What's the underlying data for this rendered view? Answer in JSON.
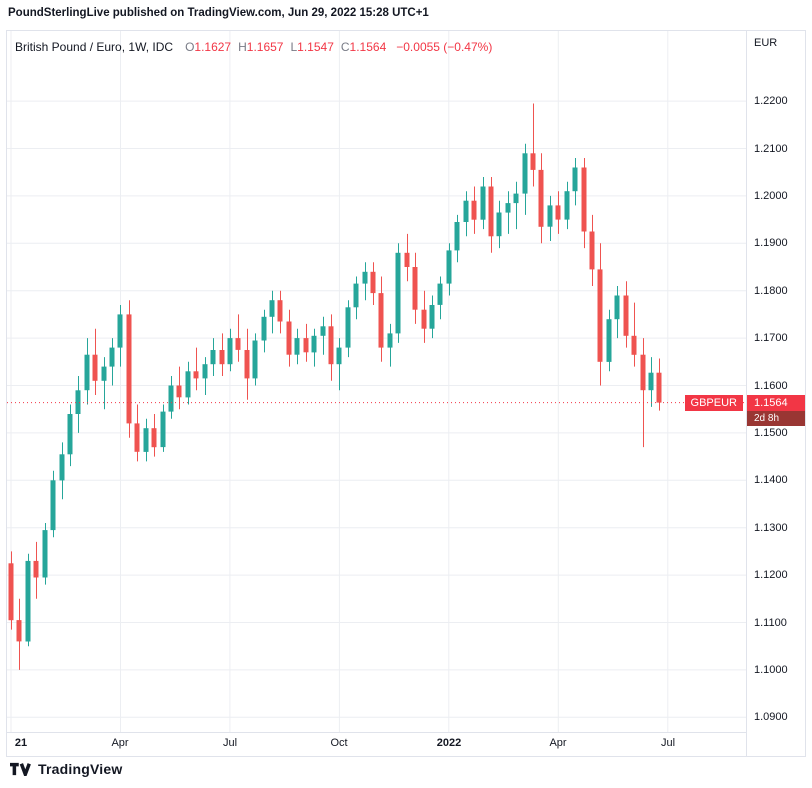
{
  "attribution": "PoundSterlingLive published on TradingView.com, Jun 29, 2022 15:28 UTC+1",
  "legend": {
    "symbol": "British Pound / Euro, 1W, IDC",
    "open_label": "O",
    "open": "1.1627",
    "high_label": "H",
    "high": "1.1657",
    "low_label": "L",
    "low": "1.1547",
    "close_label": "C",
    "close": "1.1564",
    "change": "−0.0055 (−0.47%)"
  },
  "price_axis": {
    "currency": "EUR"
  },
  "price_line": {
    "symbol": "GBPEUR",
    "price": "1.1564",
    "value": 1.1564,
    "countdown": "2d 8h"
  },
  "footer": {
    "brand": "TradingView"
  },
  "colors": {
    "up": "#26a69a",
    "down": "#ef5350",
    "down_text": "#f23645",
    "grid": "#eceef2",
    "border": "#e0e3eb",
    "axis_text": "#131722",
    "price_badge": "#f23645",
    "countdown_badge": "#993633",
    "dotted_line": "#f23645"
  },
  "chart_data": {
    "type": "candlestick",
    "title": "British Pound / Euro",
    "symbol": "GBPEUR",
    "timeframe": "1W",
    "exchange": "IDC",
    "ylabel": "EUR",
    "ylim": [
      1.0869,
      1.2348
    ],
    "grid": true,
    "yticks": [
      "1.2200",
      "1.2100",
      "1.2000",
      "1.1900",
      "1.1800",
      "1.1700",
      "1.1600",
      "1.1500",
      "1.1400",
      "1.1300",
      "1.1200",
      "1.1100",
      "1.1000",
      "1.0900"
    ],
    "x_labels": [
      {
        "index": 0,
        "label": "21",
        "bold": true
      },
      {
        "index": 13,
        "label": "Apr",
        "bold": false
      },
      {
        "index": 26,
        "label": "Jul",
        "bold": false
      },
      {
        "index": 39,
        "label": "Oct",
        "bold": false
      },
      {
        "index": 52,
        "label": "2022",
        "bold": true
      },
      {
        "index": 65,
        "label": "Apr",
        "bold": false
      },
      {
        "index": 78,
        "label": "Jul",
        "bold": false
      }
    ],
    "last_close": 1.1564,
    "candles": [
      [
        1.1225,
        1.125,
        1.1085,
        1.1105
      ],
      [
        1.1105,
        1.115,
        1.1,
        1.106
      ],
      [
        1.106,
        1.1245,
        1.105,
        1.123
      ],
      [
        1.123,
        1.127,
        1.115,
        1.1195
      ],
      [
        1.1195,
        1.131,
        1.118,
        1.1295
      ],
      [
        1.1295,
        1.142,
        1.128,
        1.14
      ],
      [
        1.14,
        1.148,
        1.136,
        1.1455
      ],
      [
        1.1455,
        1.156,
        1.143,
        1.154
      ],
      [
        1.154,
        1.162,
        1.15,
        1.159
      ],
      [
        1.159,
        1.17,
        1.156,
        1.1665
      ],
      [
        1.1665,
        1.172,
        1.158,
        1.161
      ],
      [
        1.161,
        1.166,
        1.155,
        1.164
      ],
      [
        1.164,
        1.17,
        1.16,
        1.168
      ],
      [
        1.168,
        1.177,
        1.164,
        1.175
      ],
      [
        1.175,
        1.178,
        1.149,
        1.152
      ],
      [
        1.152,
        1.156,
        1.144,
        1.146
      ],
      [
        1.146,
        1.153,
        1.144,
        1.151
      ],
      [
        1.151,
        1.154,
        1.145,
        1.147
      ],
      [
        1.147,
        1.156,
        1.146,
        1.1545
      ],
      [
        1.1545,
        1.162,
        1.153,
        1.16
      ],
      [
        1.16,
        1.164,
        1.155,
        1.1575
      ],
      [
        1.1575,
        1.165,
        1.156,
        1.163
      ],
      [
        1.163,
        1.168,
        1.159,
        1.1615
      ],
      [
        1.1615,
        1.166,
        1.158,
        1.1645
      ],
      [
        1.1645,
        1.17,
        1.162,
        1.1675
      ],
      [
        1.1675,
        1.171,
        1.162,
        1.1645
      ],
      [
        1.1645,
        1.172,
        1.163,
        1.17
      ],
      [
        1.17,
        1.175,
        1.165,
        1.1675
      ],
      [
        1.1675,
        1.172,
        1.157,
        1.1615
      ],
      [
        1.1615,
        1.171,
        1.16,
        1.1695
      ],
      [
        1.1695,
        1.176,
        1.167,
        1.1745
      ],
      [
        1.1745,
        1.18,
        1.171,
        1.178
      ],
      [
        1.178,
        1.18,
        1.171,
        1.1735
      ],
      [
        1.1735,
        1.176,
        1.164,
        1.1665
      ],
      [
        1.1665,
        1.172,
        1.1645,
        1.17
      ],
      [
        1.17,
        1.173,
        1.165,
        1.167
      ],
      [
        1.167,
        1.172,
        1.164,
        1.1705
      ],
      [
        1.1705,
        1.1745,
        1.1665,
        1.1725
      ],
      [
        1.1725,
        1.175,
        1.161,
        1.1645
      ],
      [
        1.1645,
        1.17,
        1.159,
        1.168
      ],
      [
        1.168,
        1.178,
        1.166,
        1.1765
      ],
      [
        1.1765,
        1.183,
        1.174,
        1.1815
      ],
      [
        1.1815,
        1.186,
        1.178,
        1.184
      ],
      [
        1.184,
        1.186,
        1.177,
        1.1795
      ],
      [
        1.1795,
        1.183,
        1.165,
        1.168
      ],
      [
        1.168,
        1.173,
        1.164,
        1.171
      ],
      [
        1.171,
        1.19,
        1.169,
        1.188
      ],
      [
        1.188,
        1.192,
        1.182,
        1.185
      ],
      [
        1.185,
        1.188,
        1.173,
        1.176
      ],
      [
        1.176,
        1.18,
        1.169,
        1.172
      ],
      [
        1.172,
        1.179,
        1.17,
        1.177
      ],
      [
        1.177,
        1.183,
        1.174,
        1.1815
      ],
      [
        1.1815,
        1.19,
        1.179,
        1.1885
      ],
      [
        1.1885,
        1.196,
        1.186,
        1.1945
      ],
      [
        1.1945,
        1.201,
        1.1915,
        1.199
      ],
      [
        1.199,
        1.202,
        1.192,
        1.195
      ],
      [
        1.195,
        1.204,
        1.193,
        1.202
      ],
      [
        1.202,
        1.204,
        1.188,
        1.1915
      ],
      [
        1.1915,
        1.199,
        1.189,
        1.1965
      ],
      [
        1.1965,
        1.201,
        1.192,
        1.1985
      ],
      [
        1.1985,
        1.203,
        1.193,
        1.2005
      ],
      [
        1.2005,
        1.211,
        1.196,
        1.209
      ],
      [
        1.209,
        1.2195,
        1.202,
        1.2055
      ],
      [
        1.2055,
        1.209,
        1.19,
        1.1935
      ],
      [
        1.1935,
        1.2,
        1.1905,
        1.198
      ],
      [
        1.198,
        1.201,
        1.192,
        1.195
      ],
      [
        1.195,
        1.203,
        1.193,
        1.201
      ],
      [
        1.201,
        1.208,
        1.198,
        1.206
      ],
      [
        1.206,
        1.208,
        1.189,
        1.1925
      ],
      [
        1.1925,
        1.196,
        1.181,
        1.1845
      ],
      [
        1.1845,
        1.19,
        1.16,
        1.165
      ],
      [
        1.165,
        1.176,
        1.163,
        1.174
      ],
      [
        1.174,
        1.181,
        1.17,
        1.179
      ],
      [
        1.179,
        1.182,
        1.168,
        1.1705
      ],
      [
        1.1705,
        1.1775,
        1.164,
        1.1665
      ],
      [
        1.1665,
        1.17,
        1.147,
        1.159
      ],
      [
        1.159,
        1.166,
        1.1555,
        1.1627
      ],
      [
        1.1627,
        1.1657,
        1.1547,
        1.1564
      ]
    ]
  }
}
